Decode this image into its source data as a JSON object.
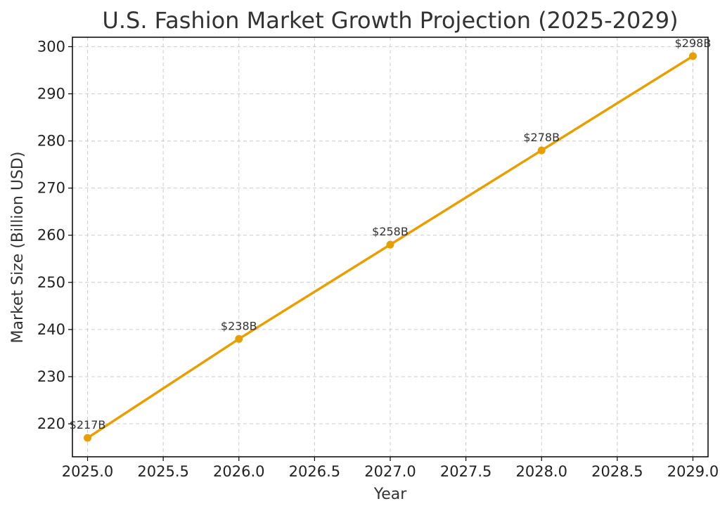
{
  "chart_data": {
    "type": "line",
    "title": "U.S. Fashion Market Growth Projection (2025-2029)",
    "xlabel": "Year",
    "ylabel": "Market Size (Billion USD)",
    "x": [
      2025,
      2026,
      2027,
      2028,
      2029
    ],
    "series": [
      {
        "values": [
          217,
          238,
          258,
          278,
          298
        ],
        "labels": [
          "$217B",
          "$238B",
          "$258B",
          "$278B",
          "$298B"
        ],
        "color": "#E69F00"
      }
    ],
    "xlim": [
      2024.9,
      2029.1
    ],
    "ylim": [
      213,
      302
    ],
    "xticks": [
      2025.0,
      2025.5,
      2026.0,
      2026.5,
      2027.0,
      2027.5,
      2028.0,
      2028.5,
      2029.0
    ],
    "xtick_labels": [
      "2025.0",
      "2025.5",
      "2026.0",
      "2026.5",
      "2027.0",
      "2027.5",
      "2028.0",
      "2028.5",
      "2029.0"
    ],
    "yticks": [
      220,
      230,
      240,
      250,
      260,
      270,
      280,
      290,
      300
    ],
    "ytick_labels": [
      "220",
      "230",
      "240",
      "250",
      "260",
      "270",
      "280",
      "290",
      "300"
    ],
    "grid": true,
    "marker": "circle"
  }
}
